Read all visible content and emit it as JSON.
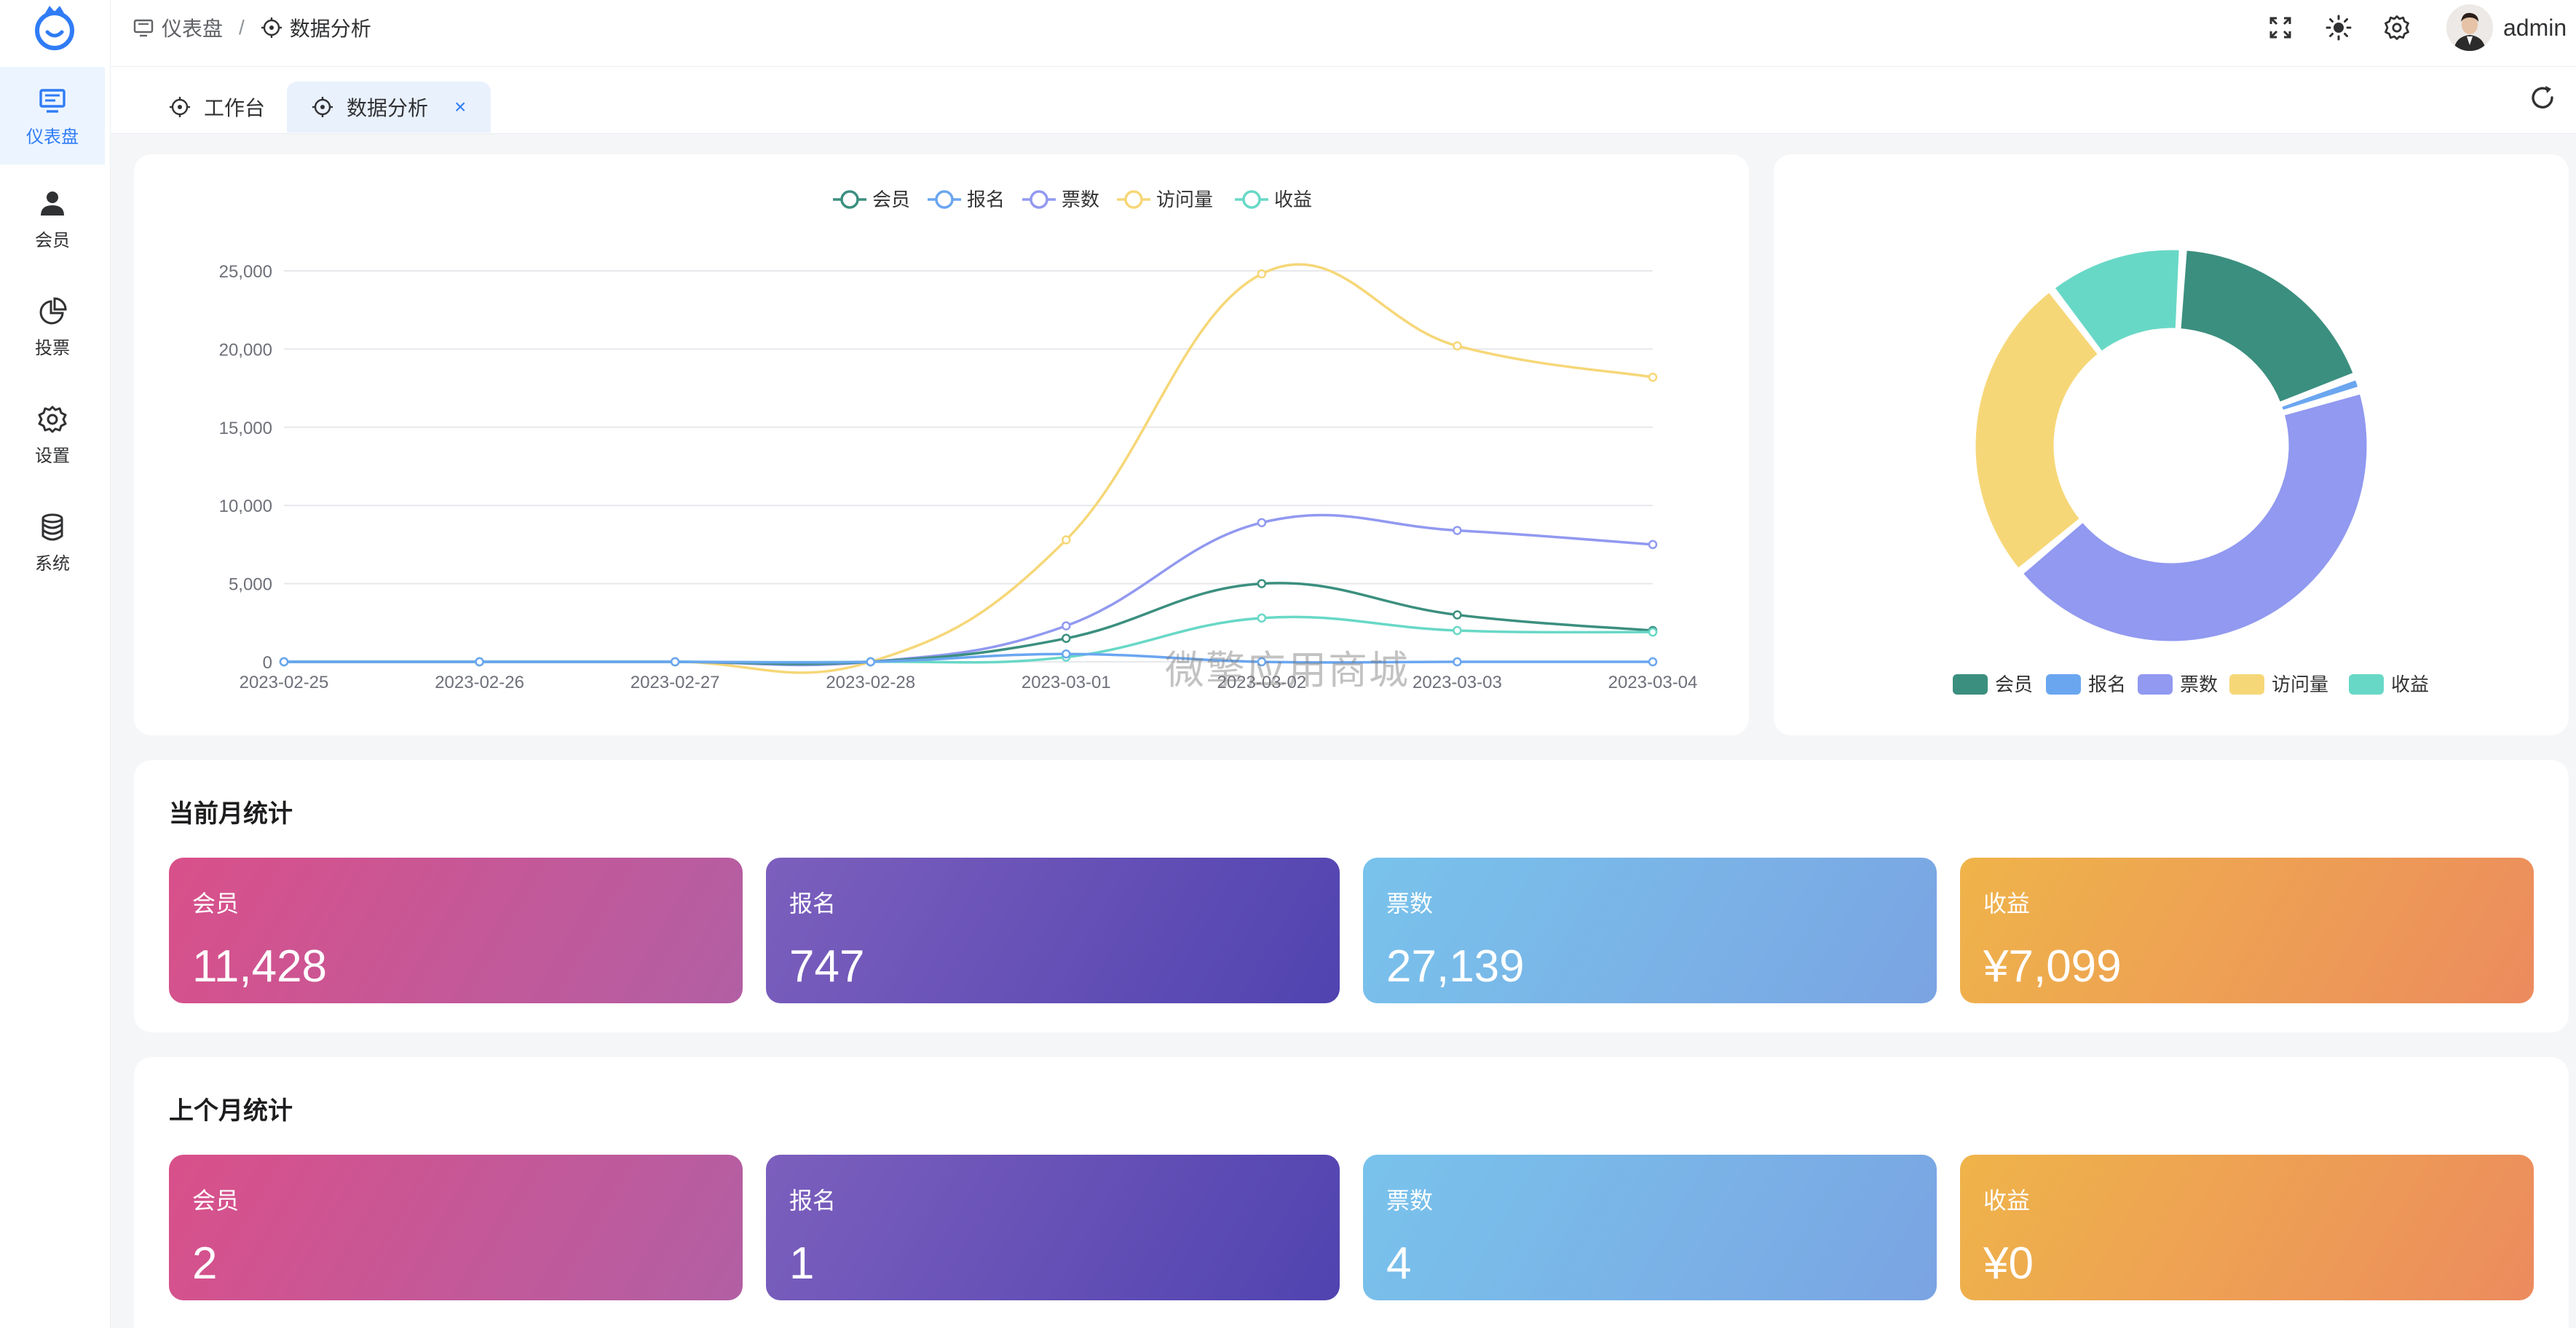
{
  "sidebar": {
    "items": [
      {
        "label": "仪表盘",
        "icon": "monitor-icon",
        "active": true
      },
      {
        "label": "会员",
        "icon": "user-icon"
      },
      {
        "label": "投票",
        "icon": "pie-chart-icon"
      },
      {
        "label": "设置",
        "icon": "gear-icon"
      },
      {
        "label": "系统",
        "icon": "database-icon"
      }
    ]
  },
  "header": {
    "breadcrumb": {
      "root": "仪表盘",
      "separator": "/",
      "current": "数据分析"
    },
    "username": "admin"
  },
  "tabs": [
    {
      "label": "工作台",
      "active": false
    },
    {
      "label": "数据分析",
      "active": true,
      "close": "×"
    }
  ],
  "watermark": "微擎应用商城",
  "chart_data": [
    {
      "type": "line",
      "legend_position": "top",
      "x": [
        "2023-02-25",
        "2023-02-26",
        "2023-02-27",
        "2023-02-28",
        "2023-03-01",
        "2023-03-02",
        "2023-03-03",
        "2023-03-04"
      ],
      "ylim": [
        0,
        25000
      ],
      "yticks": [
        "0",
        "5,000",
        "10,000",
        "15,000",
        "20,000",
        "25,000"
      ],
      "series": [
        {
          "name": "会员",
          "color": "#3b8f7f",
          "values": [
            0,
            0,
            0,
            0,
            1500,
            5000,
            3000,
            2000
          ]
        },
        {
          "name": "报名",
          "color": "#6aa6f0",
          "values": [
            0,
            0,
            0,
            0,
            500,
            0,
            0,
            0
          ]
        },
        {
          "name": "票数",
          "color": "#9199f0",
          "values": [
            0,
            0,
            0,
            0,
            2300,
            8900,
            8400,
            7500
          ]
        },
        {
          "name": "访问量",
          "color": "#f6d778",
          "values": [
            0,
            0,
            0,
            0,
            7800,
            24800,
            20200,
            18200
          ]
        },
        {
          "name": "收益",
          "color": "#68d8c6",
          "values": [
            0,
            0,
            0,
            0,
            300,
            2800,
            2000,
            1900
          ]
        }
      ]
    },
    {
      "type": "pie",
      "legend_position": "bottom",
      "slices": [
        {
          "name": "会员",
          "color": "#3b8f7f",
          "value": 11428
        },
        {
          "name": "报名",
          "color": "#6aa6f0",
          "value": 747
        },
        {
          "name": "票数",
          "color": "#9199f0",
          "value": 27139
        },
        {
          "name": "访问量",
          "color": "#f6d778",
          "value": 16000
        },
        {
          "name": "收益",
          "color": "#68d8c6",
          "value": 7099
        }
      ]
    }
  ],
  "current_month": {
    "title": "当前月统计",
    "stats": [
      {
        "label": "会员",
        "value": "11,428"
      },
      {
        "label": "报名",
        "value": "747"
      },
      {
        "label": "票数",
        "value": "27,139"
      },
      {
        "label": "收益",
        "value": "¥7,099"
      }
    ]
  },
  "last_month": {
    "title": "上个月统计",
    "stats": [
      {
        "label": "会员",
        "value": "2"
      },
      {
        "label": "报名",
        "value": "1"
      },
      {
        "label": "票数",
        "value": "4"
      },
      {
        "label": "收益",
        "value": "¥0"
      }
    ]
  }
}
